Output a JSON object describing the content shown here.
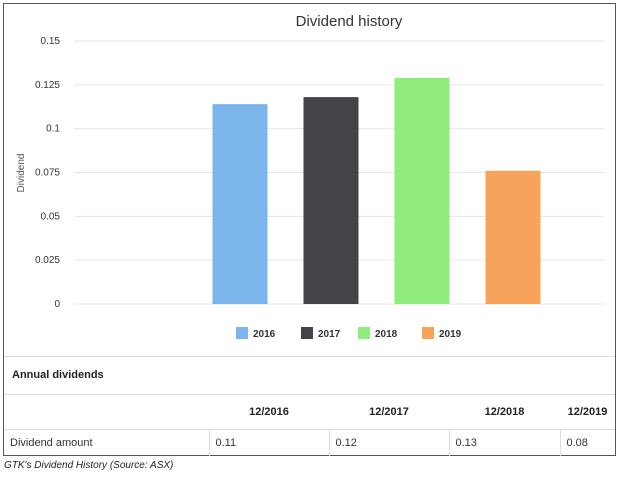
{
  "chart_data": {
    "type": "bar",
    "title": "Dividend history",
    "xlabel": "",
    "ylabel": "Dividend",
    "ylim": [
      0,
      0.15
    ],
    "yticks": [
      "0",
      "0.025",
      "0.05",
      "0.075",
      "0.1",
      "0.125",
      "0.15"
    ],
    "grid": true,
    "legend_position": "bottom",
    "series": [
      {
        "name": "2016",
        "value": 0.114,
        "color": "#7cb5ec"
      },
      {
        "name": "2017",
        "value": 0.118,
        "color": "#434348"
      },
      {
        "name": "2018",
        "value": 0.129,
        "color": "#90ed7d"
      },
      {
        "name": "2019",
        "value": 0.076,
        "color": "#f7a35c"
      }
    ]
  },
  "table": {
    "title": "Annual dividends",
    "headers": [
      "",
      "12/2016",
      "12/2017",
      "12/2018",
      "12/2019"
    ],
    "row_label": "Dividend amount",
    "values": [
      "0.11",
      "0.12",
      "0.13",
      "0.08"
    ]
  },
  "caption": "GTK's Dividend History (Source: ASX)"
}
